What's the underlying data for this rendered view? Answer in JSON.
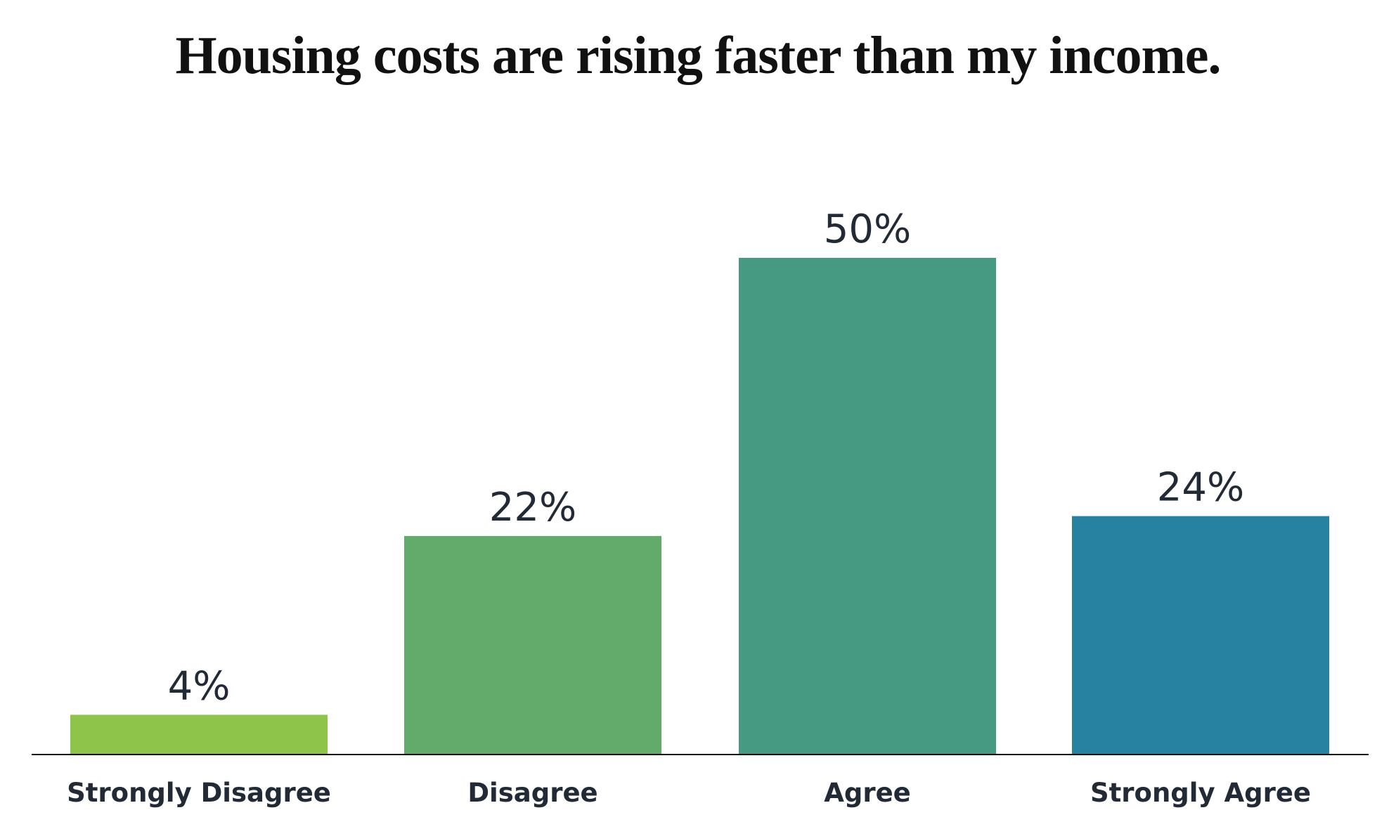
{
  "chart_data": {
    "type": "bar",
    "title": "Housing costs are rising faster than my income.",
    "categories": [
      "Strongly Disagree",
      "Disagree",
      "Agree",
      "Strongly Agree"
    ],
    "values": [
      4,
      22,
      50,
      24
    ],
    "value_labels": [
      "4%",
      "22%",
      "50%",
      "24%"
    ],
    "colors": [
      "#8fc44a",
      "#63ab6a",
      "#469a82",
      "#2782a2"
    ]
  }
}
